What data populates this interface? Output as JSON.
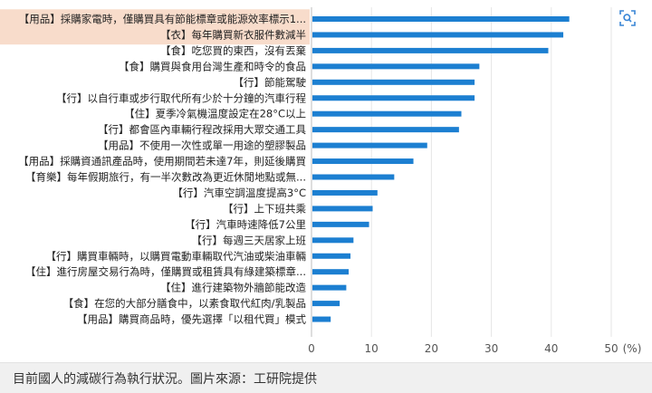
{
  "chart_data": {
    "type": "bar",
    "orientation": "horizontal",
    "categories": [
      "【用品】採購家電時，僅購買具有節能標章或能源效率標示1...",
      "【衣】每年購買新衣服件數減半",
      "【食】吃您買的東西，沒有丟棄",
      "【食】購買與食用台灣生產和時令的食品",
      "【行】節能駕駛",
      "【行】以自行車或步行取代所有少於十分鐘的汽車行程",
      "【住】夏季冷氣機溫度設定在28°C以上",
      "【行】都會區內車輛行程改採用大眾交通工具",
      "【用品】不使用一次性或單一用途的塑膠製品",
      "【用品】採購資通訊產品時，使用期間若未達7年，則延後購買",
      "【育樂】每年假期旅行，有一半次數改為更近休閒地點或無...",
      "【行】汽車空調溫度提高3°C",
      "【行】上下班共乘",
      "【行】汽車時速降低7公里",
      "【行】每週三天居家上班",
      "【行】購買車輛時，以購買電動車輛取代汽油或柴油車輛",
      "【住】進行房屋交易行為時，僅購買或租賃具有綠建築標章...",
      "【住】進行建築物外牆節能改造",
      "【食】在您的大部分膳食中，以素食取代紅肉/乳製品",
      "【用品】購買商品時，優先選擇「以租代買」模式"
    ],
    "values": [
      43,
      42,
      39.5,
      28,
      27.2,
      27.2,
      25,
      24.6,
      19.3,
      17,
      13.8,
      11,
      10.2,
      9.6,
      7,
      6.5,
      6.2,
      5.8,
      4.7,
      3.2
    ],
    "xlim": [
      0,
      50
    ],
    "xticks": [
      0,
      10,
      20,
      30,
      40,
      50
    ],
    "xunit": "(%)",
    "bar_color": "#1c7fd1",
    "highlight_color": "#f8dccb",
    "highlighted_categories": [
      0,
      1
    ],
    "grid": true
  },
  "caption": "目前國人的減碳行為執行狀況。圖片來源：工研院提供",
  "icons": {
    "zoom": "zoom-icon"
  }
}
